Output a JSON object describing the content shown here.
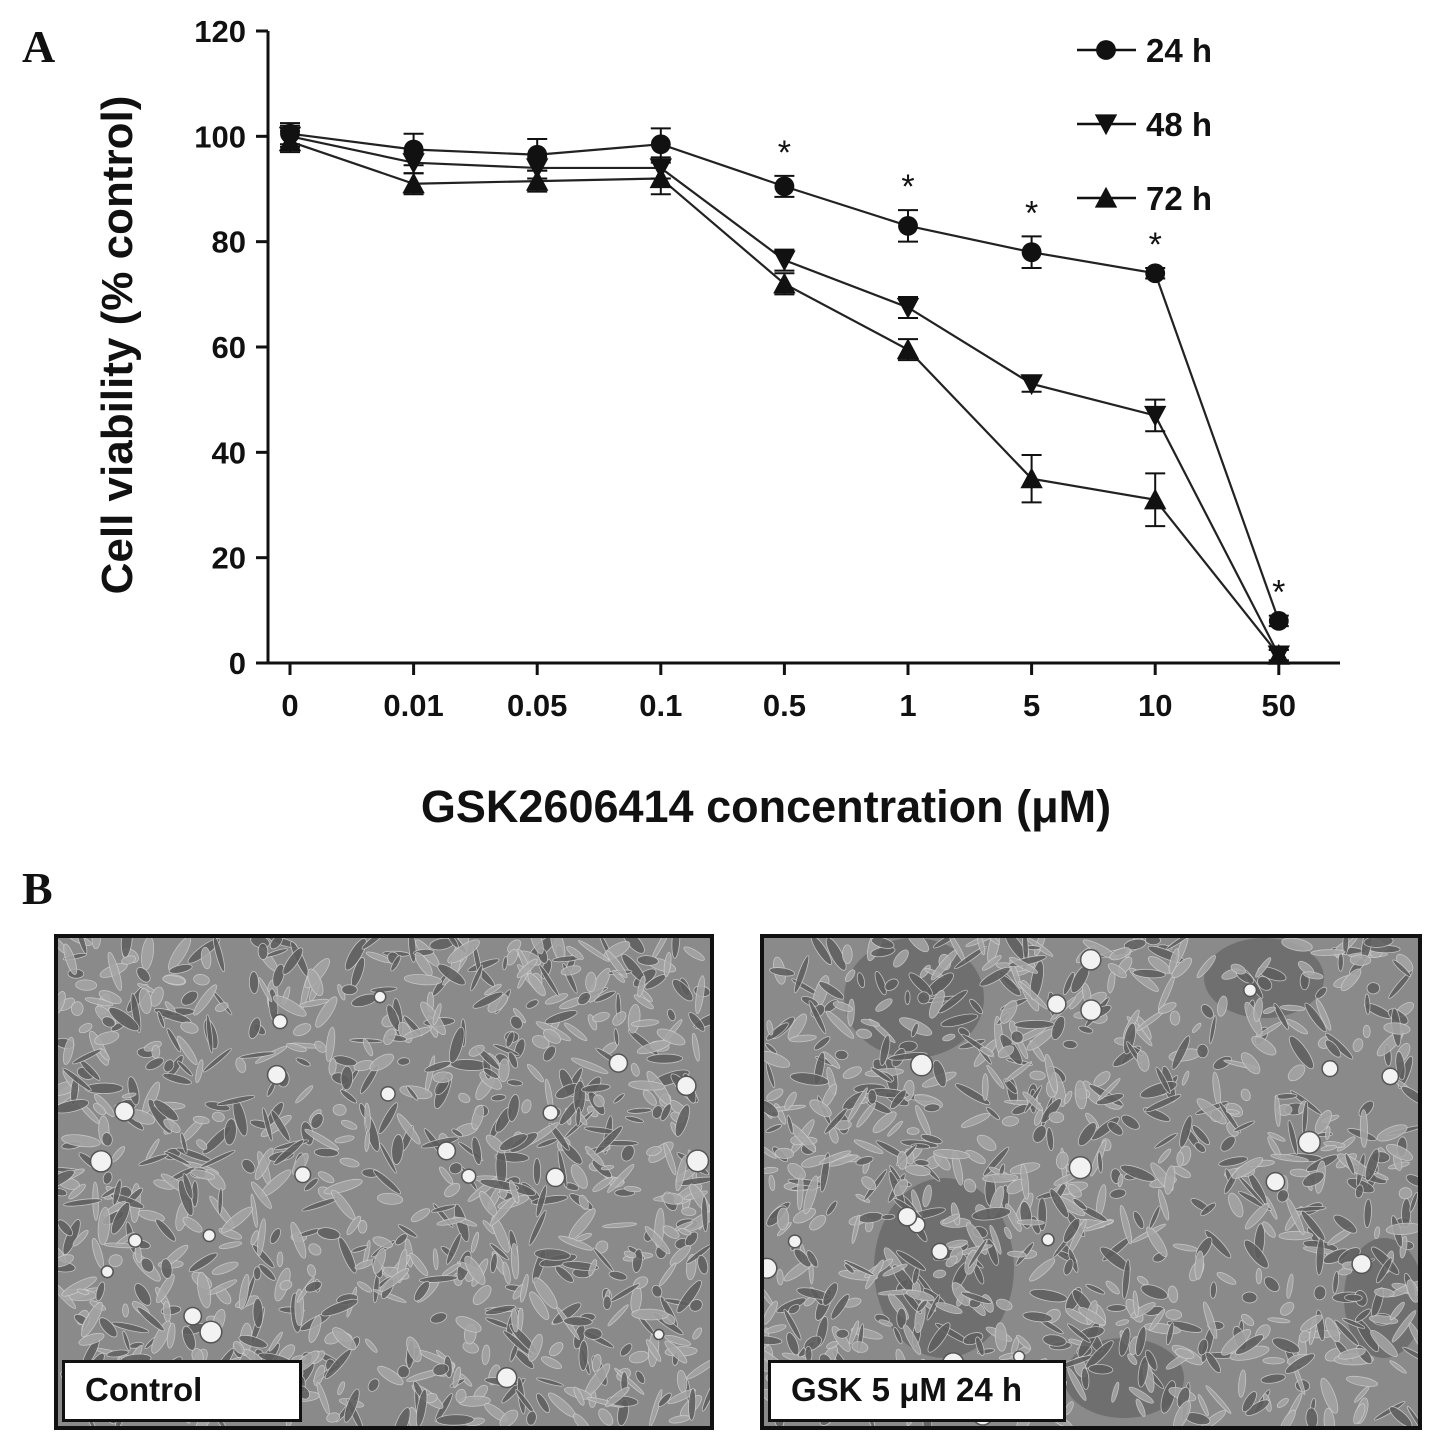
{
  "figure": {
    "panel_a_label": "A",
    "panel_b_label": "B"
  },
  "chart_data": {
    "type": "line",
    "title": "",
    "xlabel": "GSK2606414 concentration (μM)",
    "ylabel": "Cell viability (% control)",
    "categories": [
      "0",
      "0.01",
      "0.05",
      "0.1",
      "0.5",
      "1",
      "5",
      "10",
      "50"
    ],
    "yticks": [
      "0",
      "20",
      "40",
      "60",
      "80",
      "100",
      "120"
    ],
    "ylim": [
      0,
      120
    ],
    "legend_position": "top-right",
    "grid": false,
    "series": [
      {
        "name": "24 h",
        "marker": "circle",
        "values": [
          100.5,
          97.5,
          96.5,
          98.5,
          90.5,
          83,
          78,
          74,
          8
        ],
        "errors": [
          2,
          3,
          3,
          3,
          2,
          3,
          3,
          1,
          1
        ]
      },
      {
        "name": "48 h",
        "marker": "triangle-down",
        "values": [
          100,
          95,
          94,
          94,
          76.5,
          67.5,
          53,
          47,
          1.5
        ],
        "errors": [
          2,
          2,
          2,
          2,
          2,
          2,
          1.5,
          3,
          1
        ]
      },
      {
        "name": "72 h",
        "marker": "triangle-up",
        "values": [
          99,
          91,
          91.5,
          92,
          72,
          59.5,
          35,
          31,
          1.5
        ],
        "errors": [
          2,
          2,
          2,
          3,
          2,
          2,
          4.5,
          5,
          1
        ]
      }
    ],
    "significance_marker": "*",
    "significant_categories": [
      "0.5",
      "1",
      "5",
      "10",
      "50"
    ]
  },
  "micrographs": [
    {
      "caption": "Control"
    },
    {
      "caption": "GSK 5 μM 24 h"
    }
  ]
}
